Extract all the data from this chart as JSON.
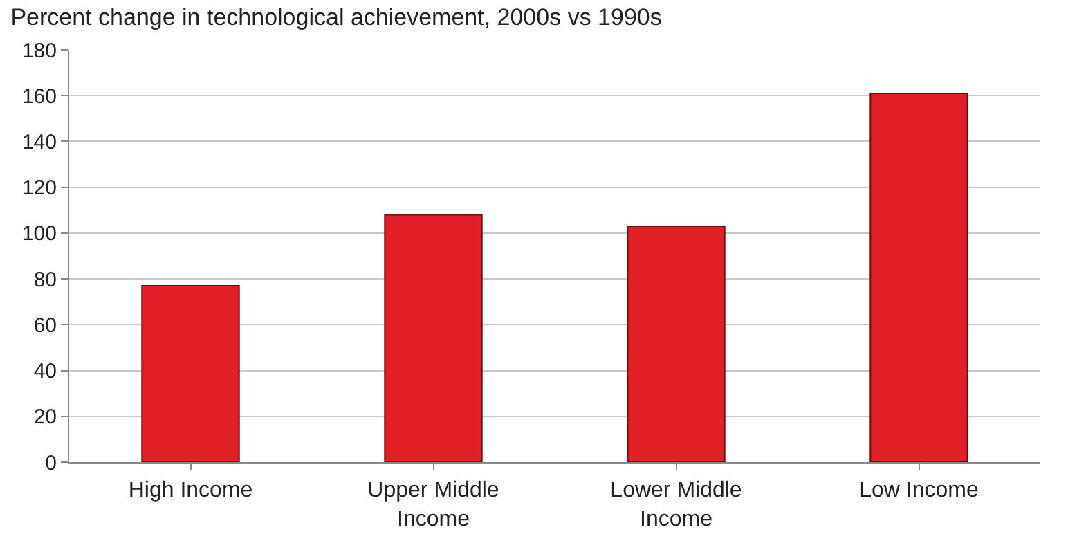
{
  "chart_data": {
    "type": "bar",
    "title": "Percent change in technological achievement, 2000s vs 1990s",
    "categories": [
      "High Income",
      "Upper Middle Income",
      "Lower Middle Income",
      "Low Income"
    ],
    "values": [
      77,
      108,
      103,
      161
    ],
    "color": "#e01f26",
    "ylim": [
      0,
      180
    ],
    "yticks": [
      0,
      20,
      40,
      60,
      80,
      100,
      120,
      140,
      160,
      180
    ],
    "grid": "y"
  }
}
